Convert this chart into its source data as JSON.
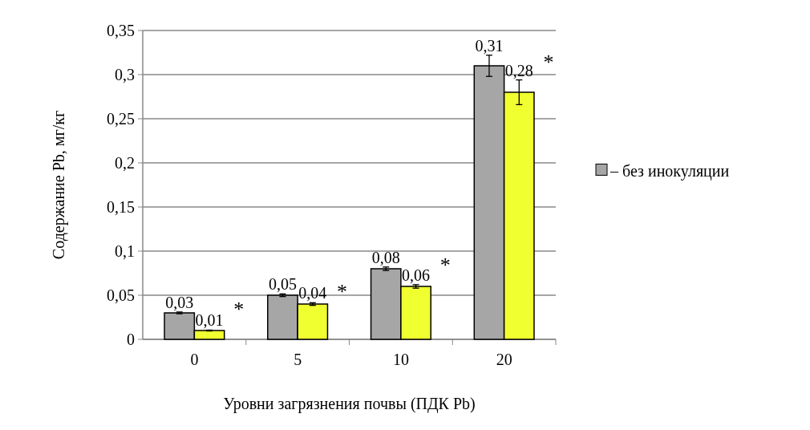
{
  "chart_data": {
    "type": "bar",
    "xlabel": "Уровни загрязнения почвы (ПДК Pb)",
    "ylabel": "Содержание Pb, мг/кг",
    "categories": [
      "0",
      "5",
      "10",
      "20"
    ],
    "series": [
      {
        "name": "– без инокуляции",
        "color": "#a6a6a6",
        "values": [
          0.03,
          0.05,
          0.08,
          0.31
        ],
        "value_labels": [
          "0,03",
          "0,05",
          "0,08",
          "0,31"
        ],
        "errors": [
          0.001,
          0.0015,
          0.002,
          0.012
        ]
      },
      {
        "color": "#f0ff30",
        "values": [
          0.01,
          0.04,
          0.06,
          0.28
        ],
        "value_labels": [
          "0,01",
          "0,04",
          "0,06",
          "0,28"
        ],
        "errors": [
          0.0005,
          0.0015,
          0.002,
          0.014
        ]
      }
    ],
    "ylim": [
      0,
      0.35
    ],
    "yticks": [
      {
        "value": 0,
        "label": "0"
      },
      {
        "value": 0.05,
        "label": "0,05"
      },
      {
        "value": 0.1,
        "label": "0,1"
      },
      {
        "value": 0.15,
        "label": "0,15"
      },
      {
        "value": 0.2,
        "label": "0,2"
      },
      {
        "value": 0.25,
        "label": "0,25"
      },
      {
        "value": 0.3,
        "label": "0,3"
      },
      {
        "value": 0.35,
        "label": "0,35"
      }
    ],
    "grid": "y",
    "legend": "right",
    "annotations": [
      "*",
      "*",
      "*",
      "*"
    ]
  }
}
